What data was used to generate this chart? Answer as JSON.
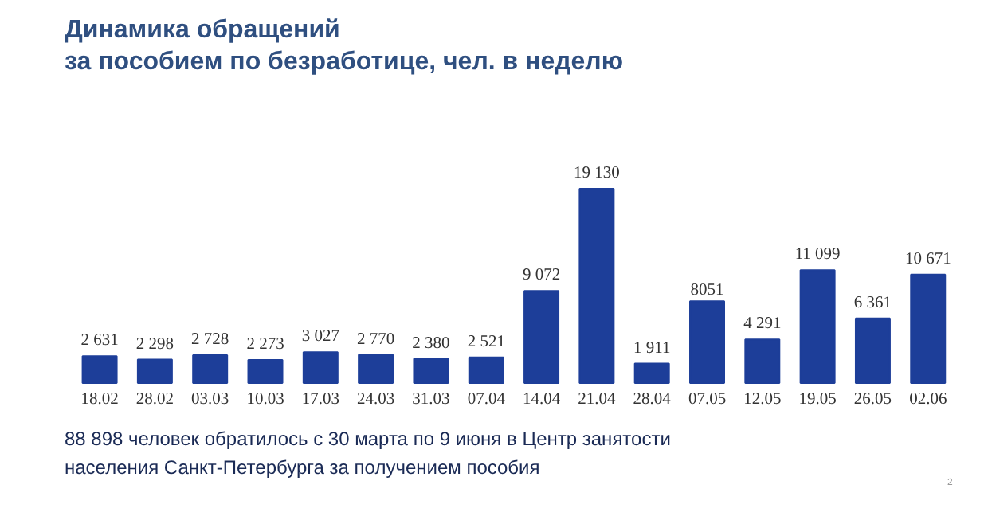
{
  "chart_data": {
    "type": "bar",
    "title": "Динамика обращений\nза пособием по безработице, чел. в неделю",
    "categories": [
      "18.02",
      "28.02",
      "03.03",
      "10.03",
      "17.03",
      "24.03",
      "31.03",
      "07.04",
      "14.04",
      "21.04",
      "28.04",
      "07.05",
      "12.05",
      "19.05",
      "26.05",
      "02.06"
    ],
    "values": [
      2631,
      2298,
      2728,
      2273,
      3027,
      2770,
      2380,
      2521,
      9072,
      19130,
      1911,
      8051,
      4291,
      11099,
      6361,
      10671
    ],
    "value_labels": [
      "2 631",
      "2 298",
      "2 728",
      "2 273",
      "3 027",
      "2 770",
      "2 380",
      "2 521",
      "9 072",
      "19 130",
      "1 911",
      "8051",
      "4 291",
      "11 099",
      "6 361",
      "10 671"
    ],
    "color": "#1d3e99",
    "annotations": [
      "88 898 человек обратилось с 30 марта по 9 июня в Центр занятости",
      "населения  Санкт-Петербурга за получением пособия",
      "2"
    ]
  }
}
